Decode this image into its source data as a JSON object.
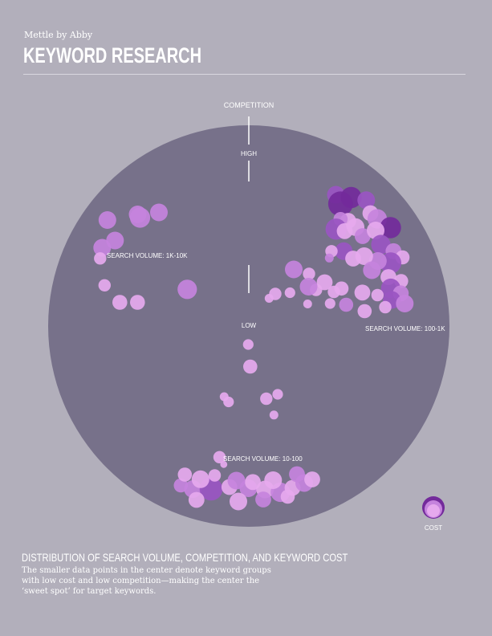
{
  "header": {
    "byline": "Mettle by Abby",
    "title": "KEYWORD RESEARCH"
  },
  "caption": {
    "title": "DISTRIBUTION OF SEARCH VOLUME, COMPETITION, AND KEYWORD COST",
    "body": "The smaller data points in the center denote keyword groups with low cost and low competition—making the center the ‘sweet spot’ for target keywords."
  },
  "colors": {
    "background": "#b2afbb",
    "disk": "#77718a",
    "light": "#e6a9ee",
    "mid": "#c583dd",
    "dark": "#9a55c2",
    "darkest": "#732a9b"
  },
  "chart_data": {
    "type": "scatter",
    "axis_label": "COMPETITION",
    "axis_ticks": [
      "HIGH",
      "LOW"
    ],
    "group_labels": [
      "SEARCH VOLUME: 1K-10K",
      "SEARCH VOLUME: 100-1K",
      "SEARCH VOLUME: 10-100"
    ],
    "legend": {
      "label": "COST"
    },
    "note": "x/y are normalized polar offsets from the disk center (radius = 1); r is relative bubble size; c is cost shade index 0-3",
    "points": [
      {
        "x": -0.705,
        "y": -0.528,
        "r": 1.0,
        "c": 1
      },
      {
        "x": -0.542,
        "y": -0.54,
        "r": 1.15,
        "c": 1
      },
      {
        "x": -0.448,
        "y": -0.566,
        "r": 1.0,
        "c": 1
      },
      {
        "x": -0.554,
        "y": -0.556,
        "r": 1.0,
        "c": 1
      },
      {
        "x": -0.667,
        "y": -0.426,
        "r": 1.0,
        "c": 1
      },
      {
        "x": -0.731,
        "y": -0.39,
        "r": 1.0,
        "c": 1
      },
      {
        "x": -0.741,
        "y": -0.337,
        "r": 0.7,
        "c": 0
      },
      {
        "x": -0.719,
        "y": -0.203,
        "r": 0.7,
        "c": 0
      },
      {
        "x": -0.307,
        "y": -0.183,
        "r": 1.1,
        "c": 1
      },
      {
        "x": -0.643,
        "y": -0.118,
        "r": 0.85,
        "c": 0
      },
      {
        "x": -0.555,
        "y": -0.118,
        "r": 0.85,
        "c": 0
      },
      {
        "x": 0.434,
        "y": -0.654,
        "r": 1.0,
        "c": 2
      },
      {
        "x": 0.51,
        "y": -0.64,
        "r": 1.2,
        "c": 3
      },
      {
        "x": 0.457,
        "y": -0.609,
        "r": 1.4,
        "c": 3
      },
      {
        "x": 0.585,
        "y": -0.627,
        "r": 1.0,
        "c": 2
      },
      {
        "x": 0.606,
        "y": -0.562,
        "r": 0.9,
        "c": 0
      },
      {
        "x": 0.64,
        "y": -0.534,
        "r": 1.1,
        "c": 1
      },
      {
        "x": 0.706,
        "y": -0.49,
        "r": 1.2,
        "c": 3
      },
      {
        "x": 0.495,
        "y": -0.524,
        "r": 0.9,
        "c": 0
      },
      {
        "x": 0.457,
        "y": -0.533,
        "r": 0.8,
        "c": 1
      },
      {
        "x": 0.435,
        "y": -0.483,
        "r": 1.2,
        "c": 2
      },
      {
        "x": 0.478,
        "y": -0.473,
        "r": 0.9,
        "c": 0
      },
      {
        "x": 0.532,
        "y": -0.493,
        "r": 1.0,
        "c": 0
      },
      {
        "x": 0.567,
        "y": -0.448,
        "r": 0.9,
        "c": 1
      },
      {
        "x": 0.632,
        "y": -0.476,
        "r": 1.0,
        "c": 0
      },
      {
        "x": 0.658,
        "y": -0.406,
        "r": 1.1,
        "c": 2
      },
      {
        "x": 0.721,
        "y": -0.373,
        "r": 0.9,
        "c": 1
      },
      {
        "x": 0.766,
        "y": -0.342,
        "r": 0.8,
        "c": 0
      },
      {
        "x": 0.707,
        "y": -0.314,
        "r": 1.2,
        "c": 2
      },
      {
        "x": 0.643,
        "y": -0.324,
        "r": 1.0,
        "c": 1
      },
      {
        "x": 0.575,
        "y": -0.348,
        "r": 1.0,
        "c": 0
      },
      {
        "x": 0.473,
        "y": -0.373,
        "r": 1.0,
        "c": 2
      },
      {
        "x": 0.412,
        "y": -0.373,
        "r": 0.7,
        "c": 0
      },
      {
        "x": 0.401,
        "y": -0.339,
        "r": 0.5,
        "c": 1
      },
      {
        "x": 0.52,
        "y": -0.336,
        "r": 0.9,
        "c": 0
      },
      {
        "x": 0.613,
        "y": -0.278,
        "r": 1.0,
        "c": 1
      },
      {
        "x": 0.696,
        "y": -0.244,
        "r": 0.9,
        "c": 0
      },
      {
        "x": 0.759,
        "y": -0.224,
        "r": 0.8,
        "c": 0
      },
      {
        "x": 0.707,
        "y": -0.188,
        "r": 1.1,
        "c": 2
      },
      {
        "x": 0.757,
        "y": -0.163,
        "r": 0.9,
        "c": 1
      },
      {
        "x": 0.712,
        "y": -0.13,
        "r": 1.0,
        "c": 2
      },
      {
        "x": 0.777,
        "y": -0.112,
        "r": 1.0,
        "c": 1
      },
      {
        "x": 0.68,
        "y": -0.094,
        "r": 0.7,
        "c": 0
      },
      {
        "x": 0.641,
        "y": -0.154,
        "r": 0.7,
        "c": 0
      },
      {
        "x": 0.566,
        "y": -0.167,
        "r": 0.9,
        "c": 0
      },
      {
        "x": 0.462,
        "y": -0.187,
        "r": 0.8,
        "c": 0
      },
      {
        "x": 0.424,
        "y": -0.17,
        "r": 0.7,
        "c": 0
      },
      {
        "x": 0.335,
        "y": -0.18,
        "r": 0.7,
        "c": 0
      },
      {
        "x": 0.224,
        "y": -0.282,
        "r": 1.0,
        "c": 1
      },
      {
        "x": 0.3,
        "y": -0.26,
        "r": 0.7,
        "c": 0
      },
      {
        "x": 0.378,
        "y": -0.218,
        "r": 0.9,
        "c": 0
      },
      {
        "x": 0.298,
        "y": -0.196,
        "r": 1.0,
        "c": 1
      },
      {
        "x": 0.205,
        "y": -0.166,
        "r": 0.6,
        "c": 0
      },
      {
        "x": 0.132,
        "y": -0.16,
        "r": 0.7,
        "c": 0
      },
      {
        "x": 0.101,
        "y": -0.138,
        "r": 0.5,
        "c": 0
      },
      {
        "x": 0.293,
        "y": -0.11,
        "r": 0.5,
        "c": 0
      },
      {
        "x": 0.405,
        "y": -0.112,
        "r": 0.6,
        "c": 0
      },
      {
        "x": 0.485,
        "y": -0.106,
        "r": 0.8,
        "c": 1
      },
      {
        "x": 0.577,
        "y": -0.074,
        "r": 0.8,
        "c": 0
      },
      {
        "x": -0.003,
        "y": 0.092,
        "r": 0.6,
        "c": 0
      },
      {
        "x": 0.007,
        "y": 0.202,
        "r": 0.8,
        "c": 0
      },
      {
        "x": -0.123,
        "y": 0.352,
        "r": 0.5,
        "c": 0
      },
      {
        "x": -0.101,
        "y": 0.378,
        "r": 0.6,
        "c": 0
      },
      {
        "x": 0.087,
        "y": 0.362,
        "r": 0.7,
        "c": 0
      },
      {
        "x": 0.144,
        "y": 0.34,
        "r": 0.6,
        "c": 0
      },
      {
        "x": 0.125,
        "y": 0.443,
        "r": 0.5,
        "c": 0
      },
      {
        "x": -0.146,
        "y": 0.653,
        "r": 0.7,
        "c": 0
      },
      {
        "x": -0.125,
        "y": 0.689,
        "r": 0.4,
        "c": 0
      },
      {
        "x": -0.339,
        "y": 0.794,
        "r": 0.8,
        "c": 1
      },
      {
        "x": -0.279,
        "y": 0.812,
        "r": 1.0,
        "c": 1
      },
      {
        "x": -0.188,
        "y": 0.812,
        "r": 1.3,
        "c": 2
      },
      {
        "x": -0.097,
        "y": 0.802,
        "r": 0.9,
        "c": 0
      },
      {
        "x": -0.002,
        "y": 0.808,
        "r": 1.0,
        "c": 1
      },
      {
        "x": 0.081,
        "y": 0.814,
        "r": 1.0,
        "c": 0
      },
      {
        "x": 0.157,
        "y": 0.828,
        "r": 1.1,
        "c": 1
      },
      {
        "x": 0.218,
        "y": 0.806,
        "r": 0.9,
        "c": 0
      },
      {
        "x": 0.276,
        "y": 0.782,
        "r": 1.0,
        "c": 1
      },
      {
        "x": 0.316,
        "y": 0.764,
        "r": 0.9,
        "c": 0
      },
      {
        "x": 0.24,
        "y": 0.738,
        "r": 0.9,
        "c": 1
      },
      {
        "x": 0.121,
        "y": 0.768,
        "r": 1.0,
        "c": 0
      },
      {
        "x": 0.02,
        "y": 0.777,
        "r": 0.9,
        "c": 0
      },
      {
        "x": -0.062,
        "y": 0.77,
        "r": 1.0,
        "c": 1
      },
      {
        "x": -0.241,
        "y": 0.763,
        "r": 1.0,
        "c": 0
      },
      {
        "x": -0.319,
        "y": 0.74,
        "r": 0.8,
        "c": 0
      },
      {
        "x": -0.17,
        "y": 0.744,
        "r": 0.7,
        "c": 0
      },
      {
        "x": 0.072,
        "y": 0.864,
        "r": 0.9,
        "c": 1
      },
      {
        "x": -0.052,
        "y": 0.874,
        "r": 1.0,
        "c": 0
      },
      {
        "x": -0.261,
        "y": 0.866,
        "r": 0.9,
        "c": 0
      },
      {
        "x": 0.194,
        "y": 0.85,
        "r": 0.8,
        "c": 0
      }
    ]
  }
}
